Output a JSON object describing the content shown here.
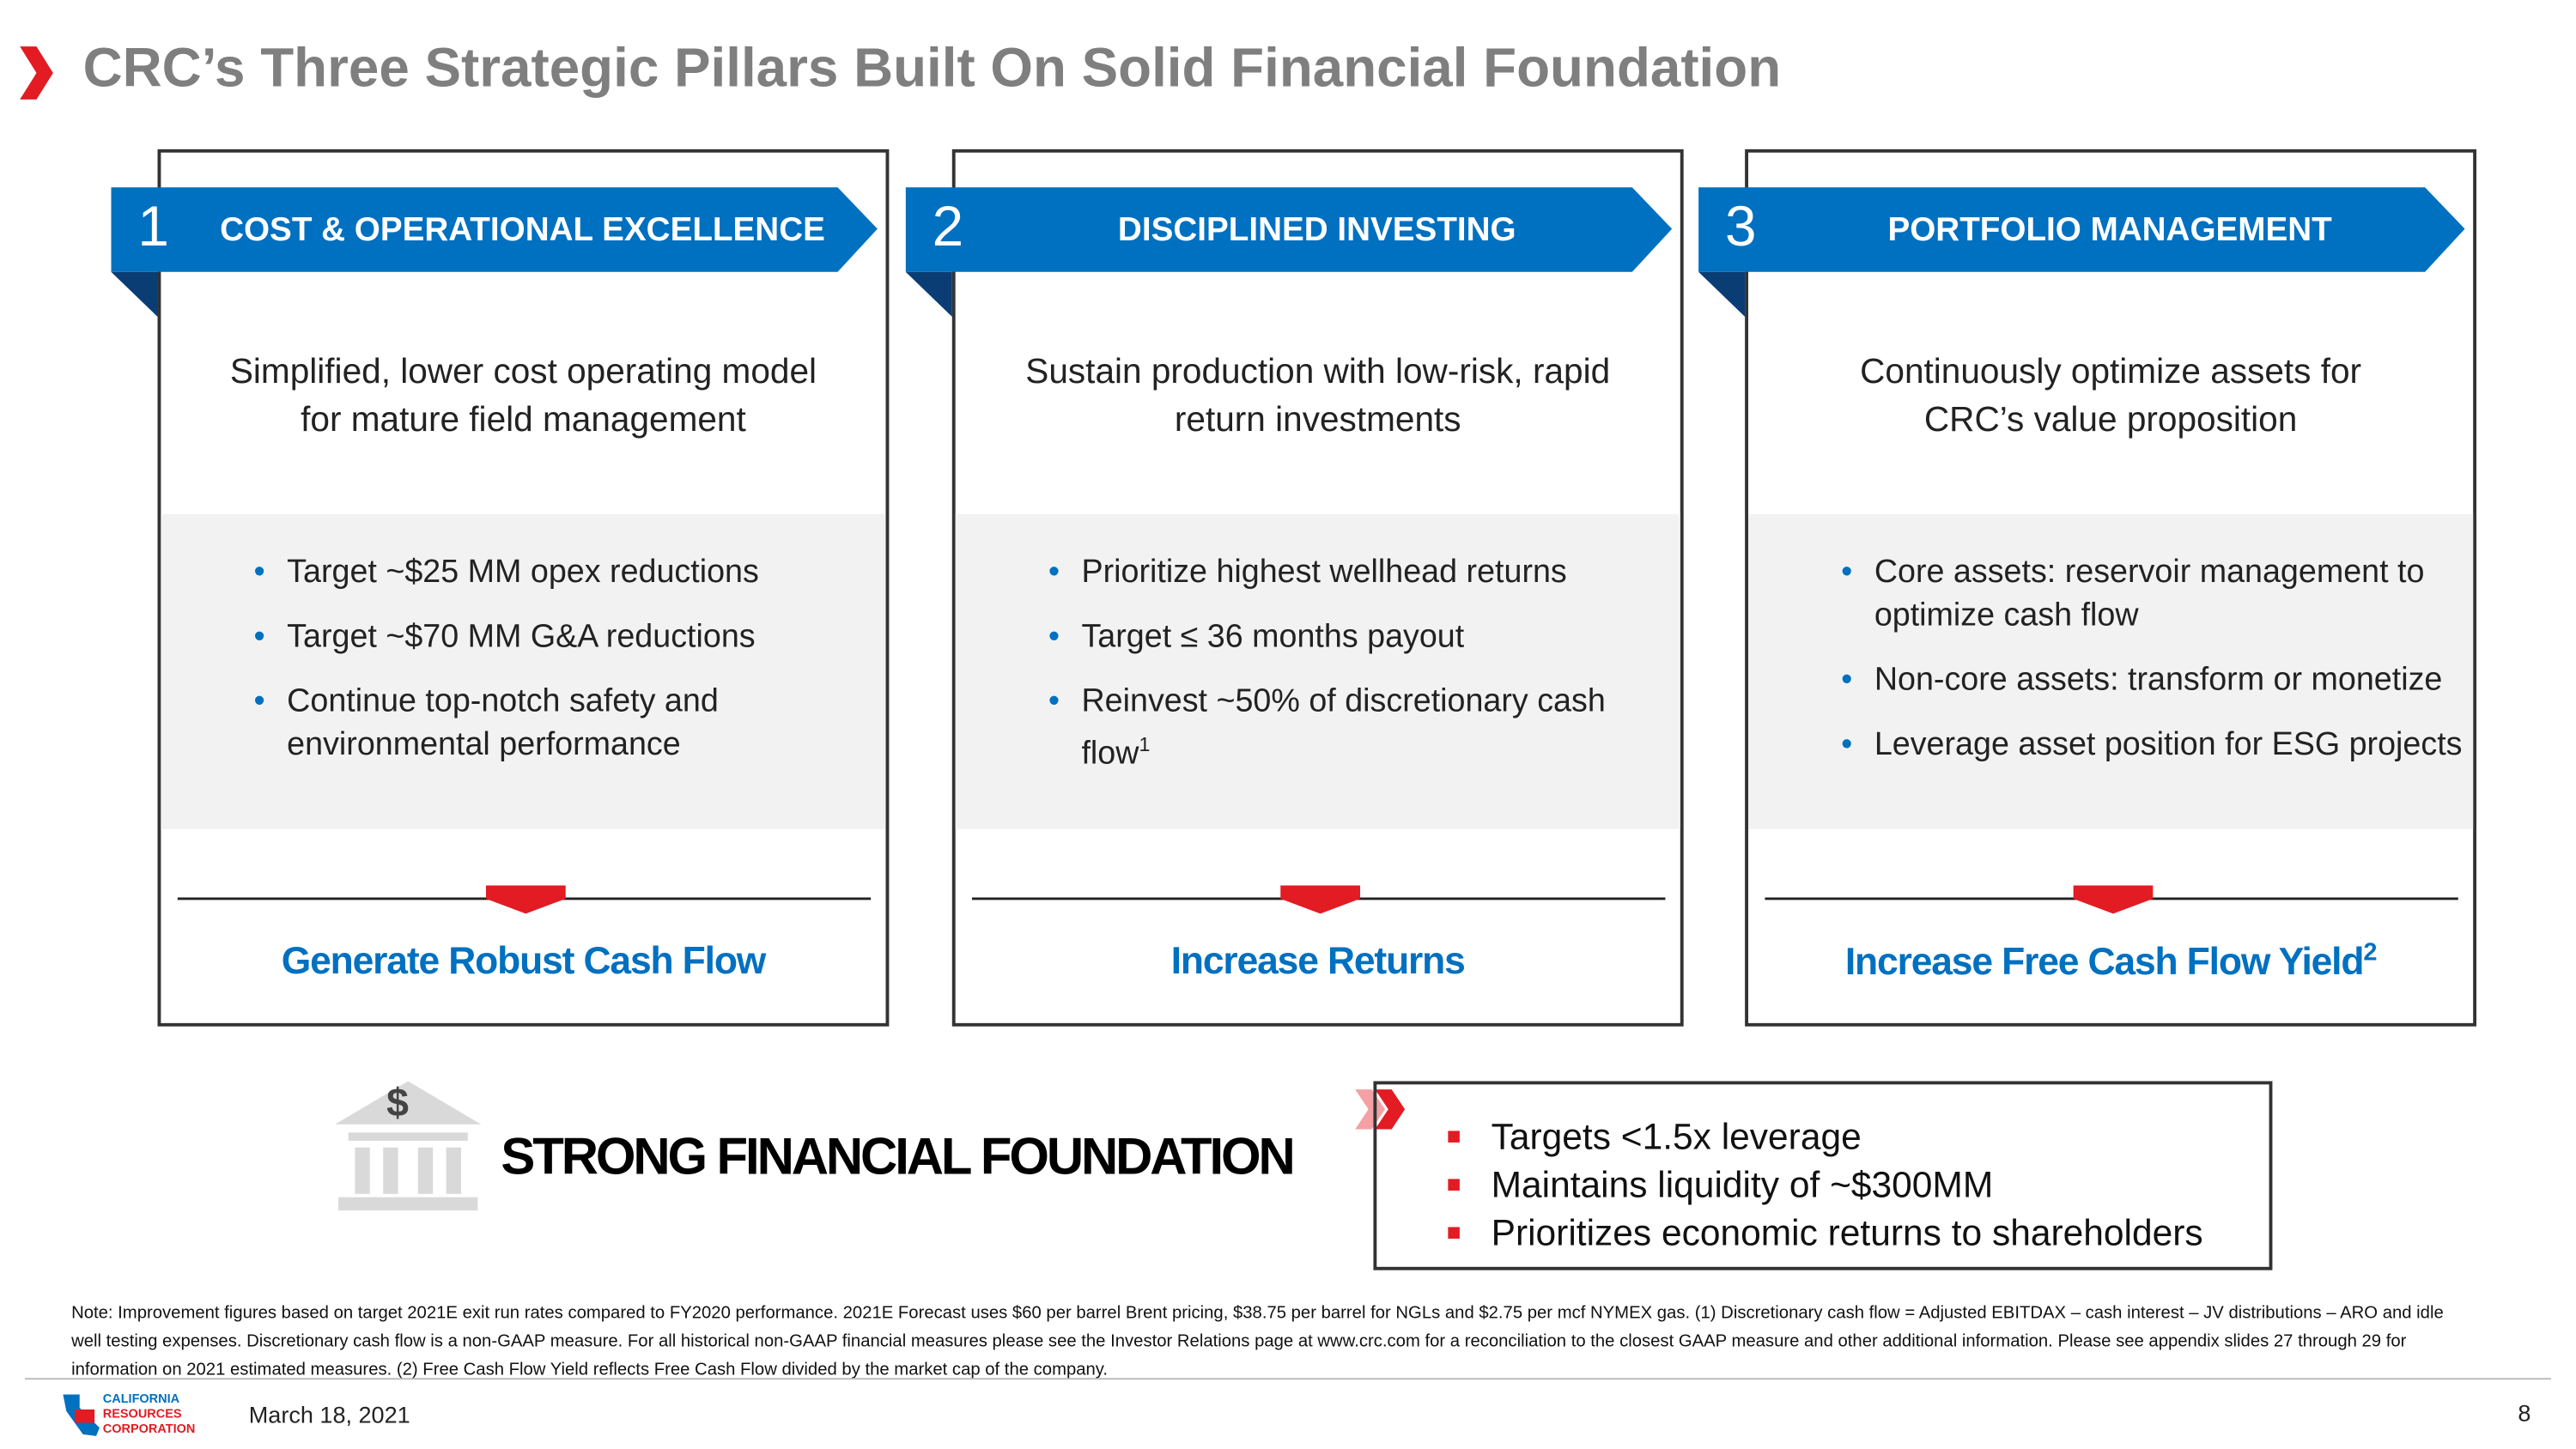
{
  "header": {
    "title": "CRC’s Three Strategic Pillars Built On Solid Financial Foundation"
  },
  "pillars": [
    {
      "number": "1",
      "heading": "COST & OPERATIONAL EXCELLENCE",
      "description": "Simplified, lower cost operating model for mature field management",
      "bullets": [
        {
          "text": "Target ~$25 MM opex reductions"
        },
        {
          "text": "Target ~$70 MM G&A reductions"
        },
        {
          "text": "Continue top-notch safety and environmental performance"
        }
      ],
      "outcome": "Generate Robust Cash Flow"
    },
    {
      "number": "2",
      "heading": "DISCIPLINED INVESTING",
      "description": "Sustain production with low-risk, rapid return investments",
      "bullets": [
        {
          "text": "Prioritize highest wellhead returns"
        },
        {
          "text": "Target ≤ 36 months payout"
        },
        {
          "text": "Reinvest  ~50% of discretionary cash flow",
          "sup": "1"
        }
      ],
      "outcome": "Increase Returns"
    },
    {
      "number": "3",
      "heading": "PORTFOLIO MANAGEMENT",
      "description": "Continuously optimize assets for CRC’s value proposition",
      "bullets": [
        {
          "text": "Core assets: reservoir management to optimize cash flow"
        },
        {
          "text": "Non-core assets:  transform or monetize"
        },
        {
          "text": "Leverage asset position for ESG projects"
        }
      ],
      "outcome": "Increase Free Cash Flow Yield",
      "outcome_sup": "2"
    }
  ],
  "foundation": {
    "icon_symbol": "$",
    "title": "STRONG FINANCIAL FOUNDATION",
    "bullets": [
      "Targets <1.5x leverage",
      "Maintains liquidity of ~$300MM",
      "Prioritizes economic returns to shareholders"
    ]
  },
  "footer": {
    "note": "Note: Improvement figures based on target 2021E exit run rates compared to FY2020 performance. 2021E Forecast uses $60 per barrel Brent pricing, $38.75 per barrel for NGLs and $2.75 per mcf NYMEX gas. (1) Discretionary cash flow = Adjusted EBITDAX – cash interest – JV distributions – ARO and idle well testing expenses. Discretionary cash flow is a non-GAAP measure. For all historical non-GAAP financial measures please see the Investor Relations page at www.crc.com for a reconciliation to the closest GAAP measure and other additional information. Please see appendix slides 27 through 29 for information on 2021 estimated measures. (2) Free Cash Flow Yield reflects Free Cash Flow divided by the market cap of the company.",
    "logo": [
      "CALIFORNIA",
      "RESOURCES",
      "CORPORATION"
    ],
    "date": "March 18, 2021",
    "page": "8"
  }
}
